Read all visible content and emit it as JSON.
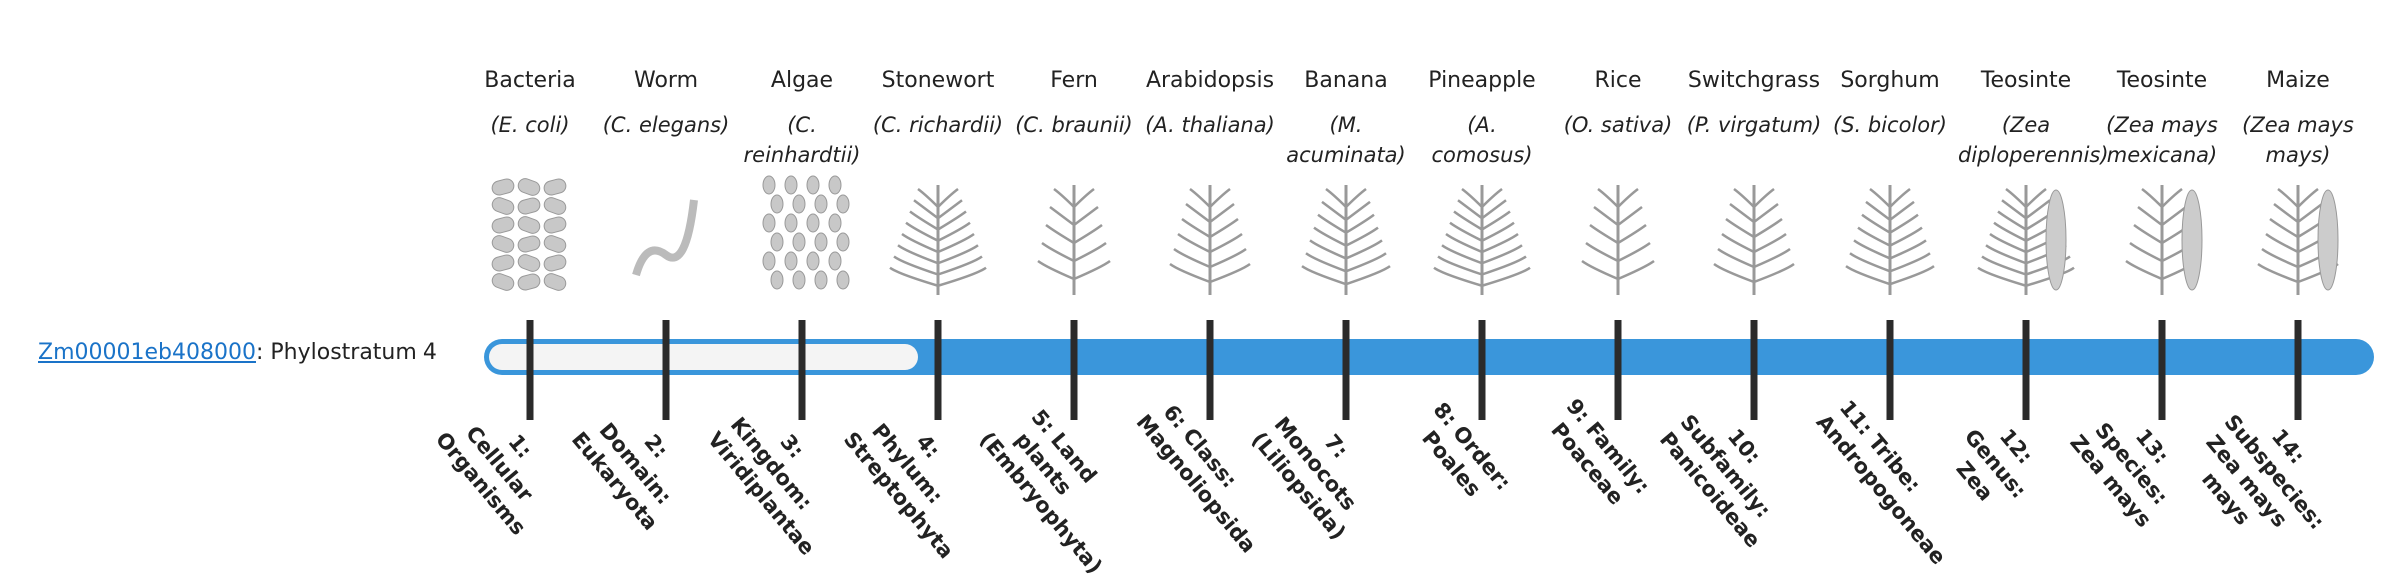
{
  "gene": {
    "id": "Zm00001eb408000",
    "label": ": Phylostratum",
    "phylostratum": 4
  },
  "organisms": [
    {
      "name": "Bacteria",
      "species": "(E. coli)",
      "rank": "1: Cellular Organisms"
    },
    {
      "name": "Worm",
      "species": "(C. elegans)",
      "rank": "2: Domain: Eukaryota"
    },
    {
      "name": "Algae",
      "species": "(C. reinhardtii)",
      "rank": "3: Kingdom: Viridiplantae"
    },
    {
      "name": "Stonewort",
      "species": "(C. richardii)",
      "rank": "4: Phylum: Streptophyta"
    },
    {
      "name": "Fern",
      "species": "(C. braunii)",
      "rank": "5: Land plants (Embryophyta)"
    },
    {
      "name": "Arabidopsis",
      "species": "(A. thaliana)",
      "rank": "6: Class: Magnoliopsida"
    },
    {
      "name": "Banana",
      "species": "(M. acuminata)",
      "rank": "7: Monocots (Liliopsida)"
    },
    {
      "name": "Pineapple",
      "species": "(A. comosus)",
      "rank": "8: Order: Poales"
    },
    {
      "name": "Rice",
      "species": "(O. sativa)",
      "rank": "9: Family: Poaceae"
    },
    {
      "name": "Switchgrass",
      "species": "(P. virgatum)",
      "rank": "10: Subfamily: Panicoideae"
    },
    {
      "name": "Sorghum",
      "species": "(S. bicolor)",
      "rank": "11: Tribe: Andropogoneae"
    },
    {
      "name": "Teosinte",
      "species": "(Zea diploperennis)",
      "rank": "12: Genus: Zea"
    },
    {
      "name": "Teosinte",
      "species": "(Zea mays mexicana)",
      "rank": "13: Species: Zea mays"
    },
    {
      "name": "Maize",
      "species": "(Zea mays mays)",
      "rank": "14: Subspecies: Zea mays mays"
    }
  ]
}
